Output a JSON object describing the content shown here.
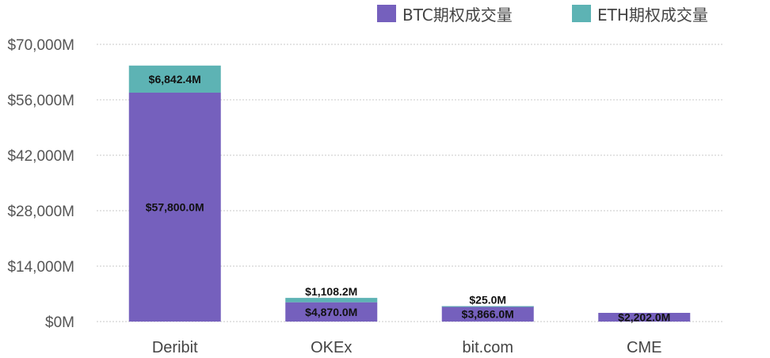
{
  "chart_data": {
    "type": "bar",
    "stacked": true,
    "categories": [
      "Deribit",
      "OKEx",
      "bit.com",
      "CME"
    ],
    "series": [
      {
        "name": "BTC期权成交量",
        "color": "#7560bd",
        "values": [
          57800.0,
          4870.0,
          3866.0,
          2202.0
        ],
        "labels": [
          "$57,800.0M",
          "$4,870.0M",
          "$3,866.0M",
          "$2,202.0M"
        ]
      },
      {
        "name": "ETH期权成交量",
        "color": "#5db3b4",
        "values": [
          6842.4,
          1108.2,
          25.0,
          0
        ],
        "labels": [
          "$6,842.4M",
          "$1,108.2M",
          "$25.0M",
          ""
        ]
      }
    ],
    "ylim": [
      0,
      70000
    ],
    "yticks": [
      0,
      14000,
      28000,
      42000,
      56000,
      70000
    ],
    "ytick_labels": [
      "$0M",
      "$14,000M",
      "$28,000M",
      "$42,000M",
      "$56,000M",
      "$70,000M"
    ],
    "grid": true,
    "legend_position": "top-right"
  }
}
